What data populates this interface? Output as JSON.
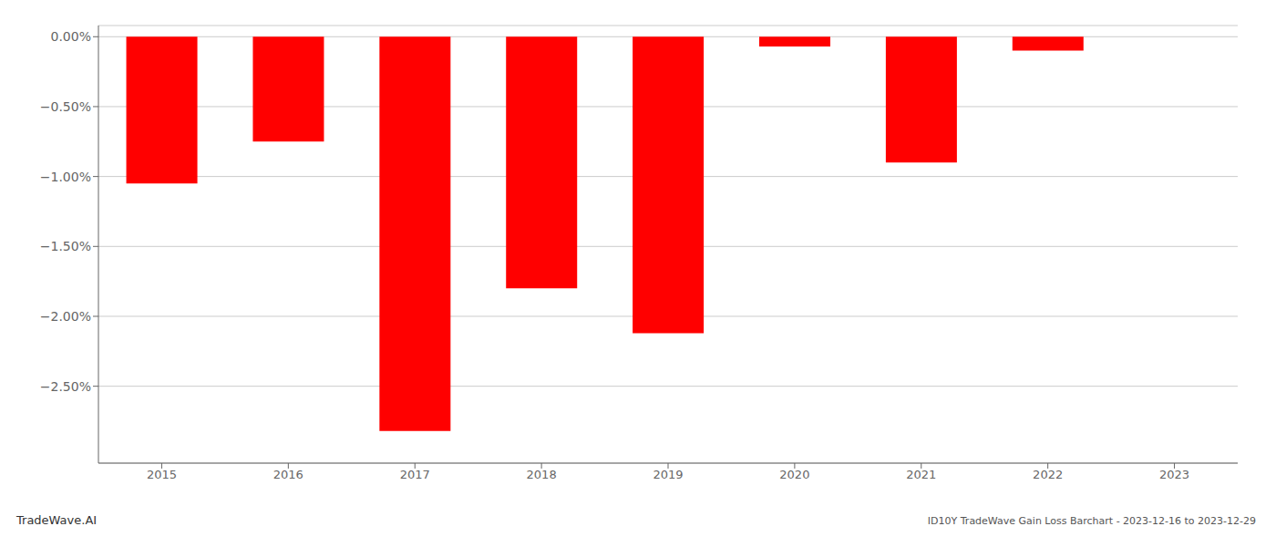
{
  "chart_data": {
    "type": "bar",
    "title": "ID10Y TradeWave Gain Loss Barchart - 2023-12-16 to 2023-12-29",
    "annotations": [
      "TradeWave.AI"
    ],
    "categories": [
      "2015",
      "2016",
      "2017",
      "2018",
      "2019",
      "2020",
      "2021",
      "2022",
      "2023"
    ],
    "values": [
      -1.05,
      -0.75,
      -2.82,
      -1.8,
      -2.12,
      -0.07,
      -0.9,
      -0.1,
      0.0
    ],
    "color": "#ff0000",
    "ylim": [
      -3.05,
      0.08
    ],
    "yticks": [
      {
        "value": 0.0,
        "label": "0.00%"
      },
      {
        "value": -0.5,
        "label": "−0.50%"
      },
      {
        "value": -1.0,
        "label": "−1.00%"
      },
      {
        "value": -1.5,
        "label": "−1.50%"
      },
      {
        "value": -2.0,
        "label": "−2.00%"
      },
      {
        "value": -2.5,
        "label": "−2.50%"
      }
    ],
    "grid": true
  }
}
